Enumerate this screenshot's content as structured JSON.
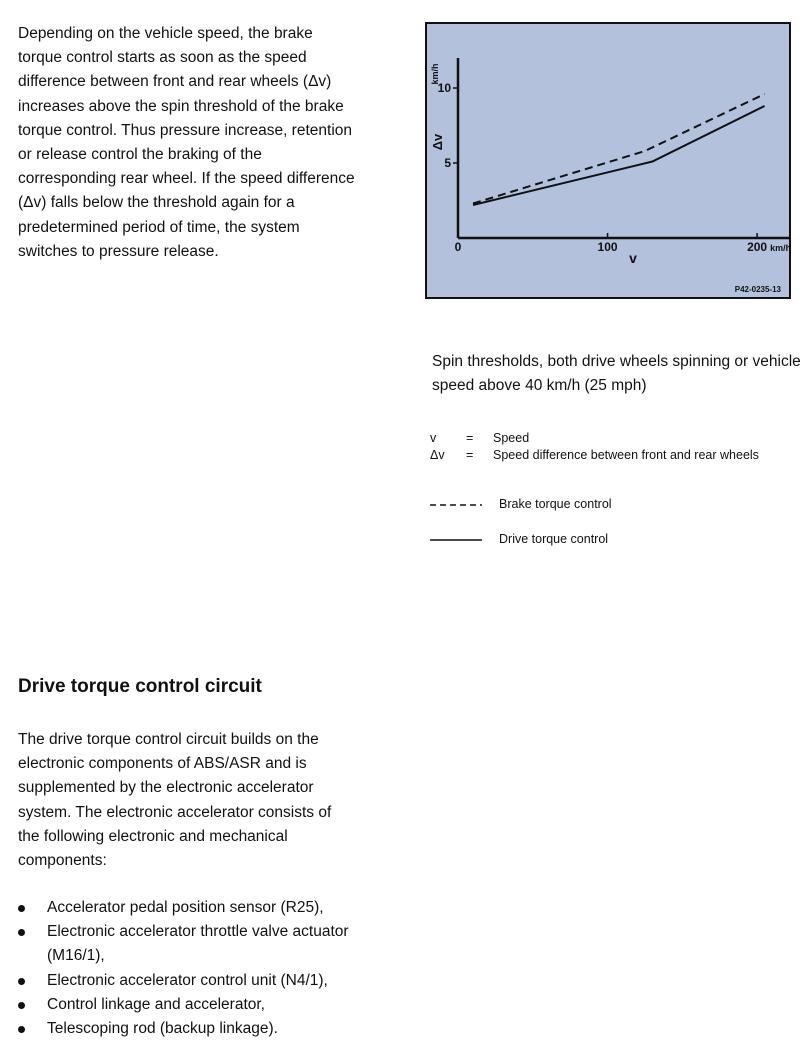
{
  "intro_paragraph": "Depending on the vehicle speed, the brake\ntorque control starts as soon as the speed\ndifference between front and rear wheels (Δv)\nincreases above the spin threshold of the brake\ntorque control. Thus pressure increase, retention\nor release control the braking of the\ncorresponding rear wheel. If the speed difference\n(Δv) falls below the threshold again for a\npredetermined period of time, the system\nswitches to pressure release.",
  "chart_data": {
    "type": "line",
    "background": "#b3c1dc",
    "xlabel": "v",
    "ylabel": "Δv",
    "y_unit": "km/h",
    "x_ticks": [
      "0",
      "100",
      "200"
    ],
    "x_tick_values": [
      0,
      100,
      200
    ],
    "x_unit": "km/h",
    "y_ticks": [
      "5",
      "10"
    ],
    "y_tick_values": [
      5,
      10
    ],
    "xlim": [
      0,
      222
    ],
    "ylim": [
      0,
      12
    ],
    "figure_code": "P42-0235-13",
    "series": [
      {
        "style": "dashed",
        "x": [
          10,
          125,
          205
        ],
        "y": [
          2.3,
          5.8,
          9.6
        ]
      },
      {
        "style": "solid",
        "x": [
          10,
          130,
          205
        ],
        "y": [
          2.2,
          5.1,
          8.8
        ]
      }
    ]
  },
  "caption": "Spin thresholds, both drive wheels spinning or vehicle speed above 40 km/h (25 mph)",
  "definitions": [
    {
      "symbol": "v",
      "eq": "=",
      "text": "Speed"
    },
    {
      "symbol": "Δv",
      "eq": "=",
      "text": "Speed difference between front and rear wheels"
    }
  ],
  "legend": [
    {
      "style": "dashed",
      "label": "Brake torque control"
    },
    {
      "style": "solid",
      "label": "Drive torque control"
    }
  ],
  "section_heading": "Drive torque control circuit",
  "drive_paragraph": "The drive torque control circuit builds on the\nelectronic components of ABS/ASR and is\nsupplemented by the electronic accelerator\nsystem. The electronic accelerator consists of\nthe following electronic and mechanical\ncomponents:",
  "bullets": [
    [
      "Accelerator pedal position sensor (R25),"
    ],
    [
      "Electronic accelerator throttle valve actuator",
      "(M16/1),"
    ],
    [
      "Electronic accelerator control unit (N4/1),"
    ],
    [
      "Control linkage and accelerator,"
    ],
    [
      "Telescoping rod (backup linkage)."
    ]
  ]
}
